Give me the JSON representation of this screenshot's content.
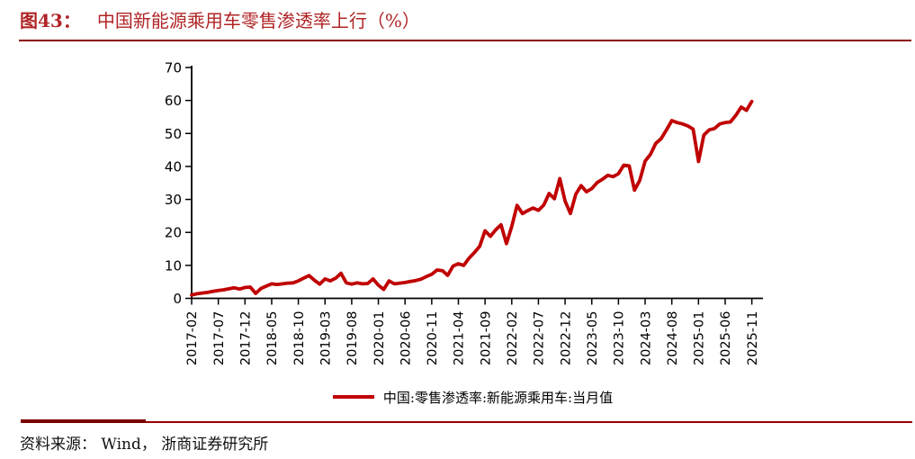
{
  "header": {
    "figure_label": "图43：",
    "title": "中国新能源乘用车零售渗透率上行（%）",
    "title_color": "#B02426",
    "rule_color": "#8B0000"
  },
  "legend": {
    "label": "中国:零售渗透率:新能源乘用车:当月值",
    "marker_color": "#C00000"
  },
  "footer": {
    "source_text": "资料来源： Wind， 浙商证券研究所",
    "thin_rule_color": "#990000",
    "thick_rule_color": "#7A0000"
  },
  "chart_data": {
    "type": "line",
    "title": "中国新能源乘用车零售渗透率上行（%）",
    "unit": "%",
    "x_start": "2017-02",
    "x_end": "2025-11",
    "frequency": "monthly",
    "x_tick_every": 5,
    "x_tick_labels": [
      "2017-02",
      "2017-07",
      "2017-12",
      "2018-05",
      "2018-10",
      "2019-03",
      "2019-08",
      "2020-01",
      "2020-06",
      "2020-11",
      "2021-04",
      "2021-09",
      "2022-02",
      "2022-07",
      "2022-12",
      "2023-05",
      "2023-10",
      "2024-03",
      "2024-08",
      "2025-01",
      "2025-06",
      "2025-11"
    ],
    "ylim": [
      0,
      70
    ],
    "yticks": [
      0,
      10,
      20,
      30,
      40,
      50,
      60,
      70
    ],
    "grid": false,
    "legend_position": "bottom",
    "axis_color": "#000000",
    "series": [
      {
        "name": "中国:零售渗透率:新能源乘用车:当月值",
        "color": "#C00000",
        "values": [
          1.0,
          1.4,
          1.6,
          1.8,
          2.1,
          2.4,
          2.6,
          2.9,
          3.2,
          2.8,
          3.3,
          3.4,
          1.5,
          3.0,
          3.7,
          4.4,
          4.2,
          4.4,
          4.6,
          4.7,
          5.3,
          6.1,
          6.9,
          5.5,
          4.3,
          5.9,
          5.3,
          6.1,
          7.6,
          4.7,
          4.3,
          4.7,
          4.4,
          4.5,
          5.9,
          4.0,
          2.7,
          5.3,
          4.4,
          4.6,
          4.8,
          5.1,
          5.4,
          5.8,
          6.6,
          7.3,
          8.6,
          8.4,
          7.0,
          9.8,
          10.5,
          10.0,
          12.2,
          13.9,
          15.8,
          20.5,
          18.8,
          20.8,
          22.3,
          16.6,
          21.8,
          28.2,
          25.7,
          26.6,
          27.4,
          26.7,
          28.3,
          31.8,
          30.2,
          36.3,
          29.5,
          25.7,
          31.6,
          34.2,
          32.3,
          33.3,
          35.1,
          36.1,
          37.3,
          36.9,
          37.8,
          40.4,
          40.2,
          32.8,
          35.8,
          41.6,
          43.7,
          47.0,
          48.4,
          51.1,
          53.9,
          53.3,
          52.9,
          52.3,
          51.3,
          41.5,
          49.5,
          51.1,
          51.5,
          52.9,
          53.3,
          53.5,
          55.5,
          58.0,
          57.0,
          59.7
        ]
      }
    ]
  }
}
